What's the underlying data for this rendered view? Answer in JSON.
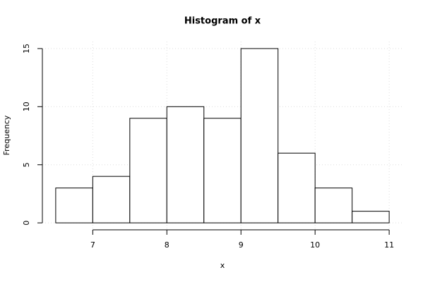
{
  "chart_data": {
    "type": "histogram",
    "title": "Histogram of x",
    "x_label": "x",
    "y_label": "Frequency",
    "bins": [
      6.5,
      7,
      7.5,
      8,
      8.5,
      9,
      9.5,
      10,
      10.5,
      11
    ],
    "values": [
      3,
      4,
      9,
      10,
      9,
      15,
      6,
      3,
      1
    ],
    "color": "#ffffff",
    "xlim": [
      6.32,
      11.18
    ],
    "xticks": [
      7,
      8,
      9,
      10,
      11
    ],
    "ylim": [
      -0.6,
      15.6
    ],
    "yticks": [
      0,
      5,
      10,
      15
    ],
    "grid": true
  }
}
